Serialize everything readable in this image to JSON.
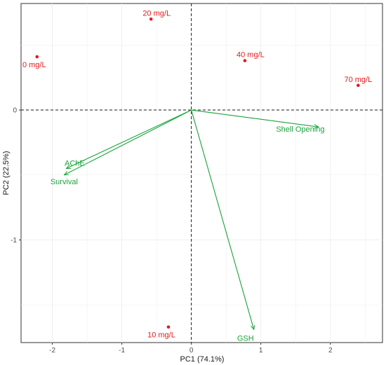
{
  "chart_data": {
    "type": "scatter",
    "subtype": "pca-biplot",
    "title": "",
    "xlabel": "PC1 (74.1%)",
    "ylabel": "PC2 (22.5%)",
    "xlim": [
      -2.45,
      2.75
    ],
    "ylim": [
      -1.79,
      0.82
    ],
    "xticks": [
      -2,
      -1,
      0,
      1,
      2
    ],
    "yticks": [
      -1,
      0
    ],
    "grid": true,
    "reference_lines": [
      {
        "axis": "x",
        "value": 0
      },
      {
        "axis": "y",
        "value": 0
      }
    ],
    "point_color": "#e41a1c",
    "arrow_color": "#1aa33a",
    "points": [
      {
        "label": "0 mg/L",
        "x": -2.22,
        "y": 0.41
      },
      {
        "label": "20 mg/L",
        "x": -0.58,
        "y": 0.7
      },
      {
        "label": "40 mg/L",
        "x": 0.77,
        "y": 0.38
      },
      {
        "label": "70 mg/L",
        "x": 2.4,
        "y": 0.19
      },
      {
        "label": "10 mg/L",
        "x": -0.33,
        "y": -1.67
      }
    ],
    "vectors": [
      {
        "label": "Shell Opening",
        "x": 1.83,
        "y": -0.13
      },
      {
        "label": "AChE",
        "x": -1.8,
        "y": -0.45
      },
      {
        "label": "Survival",
        "x": -1.83,
        "y": -0.5
      },
      {
        "label": "GSH",
        "x": 0.9,
        "y": -1.69
      }
    ]
  }
}
